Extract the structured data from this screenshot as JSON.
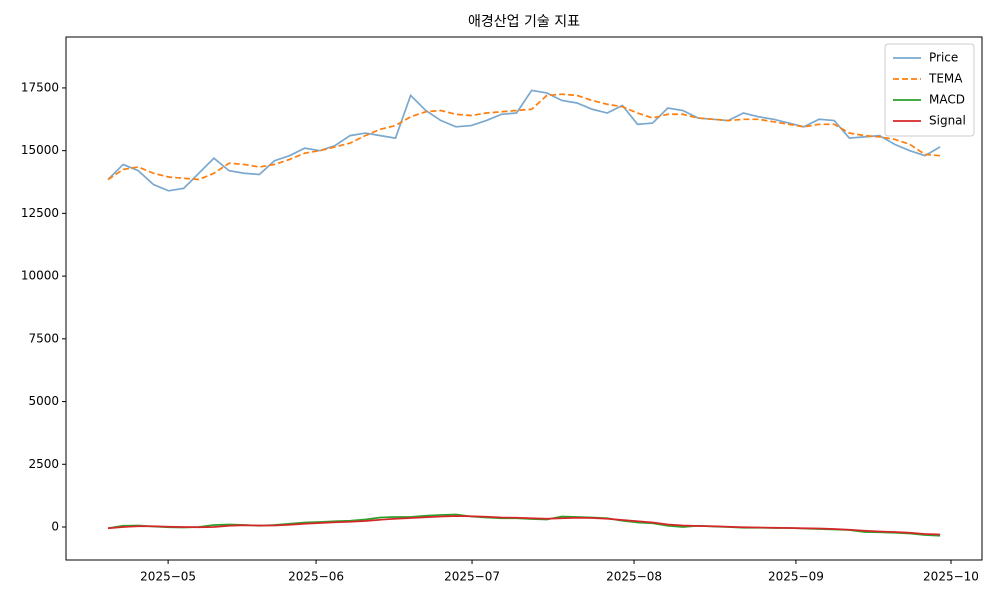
{
  "chart_data": {
    "type": "line",
    "title": "애경산업 기술 지표",
    "xlim": [
      -2.78,
      57.77
    ],
    "xticks": [
      {
        "value": 3.97,
        "label": "2025−05"
      },
      {
        "value": 13.75,
        "label": "2025−06"
      },
      {
        "value": 24.06,
        "label": "2025−07"
      },
      {
        "value": 34.77,
        "label": "2025−08"
      },
      {
        "value": 45.47,
        "label": "2025−09"
      },
      {
        "value": 55.72,
        "label": "2025−10"
      }
    ],
    "ylim": [
      -1315,
      19530
    ],
    "yticks": [
      0,
      2500,
      5000,
      7500,
      10000,
      12500,
      15000,
      17500
    ],
    "grid": false,
    "legend": "upper right",
    "series": [
      {
        "name": "Price",
        "color": "#7aa8cf",
        "linestyle": "solid",
        "values": [
          13850,
          14450,
          14200,
          13650,
          13400,
          13500,
          14100,
          14700,
          14200,
          14100,
          14050,
          14600,
          14800,
          15100,
          15000,
          15200,
          15600,
          15700,
          15600,
          15500,
          17200,
          16600,
          16200,
          15950,
          16000,
          16200,
          16450,
          16500,
          17400,
          17300,
          17000,
          16900,
          16650,
          16500,
          16800,
          16050,
          16100,
          16700,
          16600,
          16300,
          16250,
          16200,
          16500,
          16350,
          16250,
          16100,
          15950,
          16250,
          16200,
          15500,
          15550,
          15600,
          15250,
          15000,
          14800,
          15150
        ]
      },
      {
        "name": "TEMA",
        "color": "#ff7f0e",
        "linestyle": "dashed",
        "values": [
          13850,
          14250,
          14350,
          14100,
          13950,
          13900,
          13850,
          14100,
          14500,
          14450,
          14350,
          14450,
          14650,
          14900,
          15000,
          15150,
          15300,
          15600,
          15850,
          16000,
          16350,
          16550,
          16600,
          16450,
          16400,
          16500,
          16550,
          16600,
          16650,
          17200,
          17250,
          17200,
          17000,
          16850,
          16750,
          16500,
          16300,
          16450,
          16450,
          16300,
          16250,
          16200,
          16250,
          16250,
          16150,
          16050,
          15950,
          16050,
          16050,
          15700,
          15600,
          15550,
          15450,
          15250,
          14850,
          14800
        ]
      },
      {
        "name": "MACD",
        "color": "#2ca02c",
        "linestyle": "solid",
        "values": [
          -50,
          50,
          60,
          20,
          -10,
          -20,
          0,
          80,
          100,
          80,
          50,
          80,
          130,
          180,
          200,
          230,
          250,
          300,
          380,
          400,
          400,
          450,
          480,
          500,
          420,
          380,
          350,
          350,
          320,
          300,
          420,
          400,
          380,
          350,
          250,
          180,
          150,
          50,
          0,
          50,
          20,
          0,
          -30,
          -30,
          -40,
          -40,
          -60,
          -80,
          -100,
          -120,
          -200,
          -210,
          -230,
          -260,
          -320,
          -350
        ]
      },
      {
        "name": "Signal",
        "color": "#d62728",
        "linestyle": "solid",
        "values": [
          -50,
          0,
          30,
          30,
          10,
          0,
          -10,
          0,
          50,
          70,
          60,
          60,
          90,
          130,
          160,
          190,
          210,
          240,
          290,
          330,
          360,
          390,
          420,
          440,
          430,
          410,
          380,
          370,
          350,
          330,
          350,
          370,
          360,
          330,
          280,
          230,
          180,
          100,
          60,
          40,
          30,
          10,
          -10,
          -20,
          -30,
          -40,
          -50,
          -60,
          -80,
          -110,
          -150,
          -180,
          -200,
          -230,
          -280,
          -300
        ]
      }
    ]
  }
}
